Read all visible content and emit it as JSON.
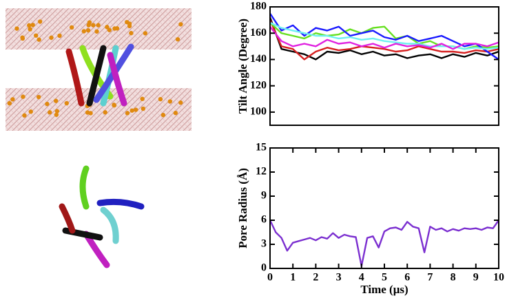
{
  "chart_data": [
    {
      "type": "line",
      "y_label": "Tilt Angle (Degree)",
      "x": [
        0,
        0.5,
        1,
        1.5,
        2,
        2.5,
        3,
        3.5,
        4,
        4.5,
        5,
        5.5,
        6,
        6.5,
        7,
        7.5,
        8,
        8.5,
        9,
        9.5,
        10
      ],
      "xlim": [
        0,
        10
      ],
      "ylim": [
        90,
        180
      ],
      "yticks": [
        100,
        120,
        140,
        160,
        180
      ],
      "series": [
        {
          "color": "#000000",
          "values": [
            172,
            148,
            146,
            144,
            140,
            146,
            145,
            147,
            144,
            146,
            143,
            144,
            141,
            143,
            144,
            141,
            144,
            142,
            145,
            143,
            146
          ]
        },
        {
          "color": "#d62020",
          "values": [
            170,
            150,
            148,
            140,
            146,
            149,
            147,
            148,
            150,
            149,
            148,
            146,
            147,
            150,
            148,
            146,
            146,
            145,
            147,
            146,
            148
          ]
        },
        {
          "color": "#66e020",
          "values": [
            168,
            160,
            158,
            156,
            160,
            158,
            159,
            163,
            160,
            164,
            165,
            156,
            158,
            152,
            154,
            150,
            150,
            148,
            150,
            149,
            150
          ]
        },
        {
          "color": "#1a1aff",
          "values": [
            175,
            162,
            166,
            158,
            164,
            162,
            165,
            158,
            160,
            162,
            157,
            155,
            158,
            154,
            156,
            158,
            154,
            150,
            152,
            146,
            140
          ]
        },
        {
          "color": "#6ff0f0",
          "values": [
            168,
            164,
            162,
            160,
            158,
            158,
            156,
            157,
            155,
            156,
            154,
            153,
            152,
            152,
            150,
            150,
            150,
            148,
            149,
            148,
            149
          ]
        },
        {
          "color": "#e020e0",
          "values": [
            165,
            154,
            150,
            152,
            150,
            155,
            152,
            153,
            150,
            152,
            149,
            152,
            150,
            151,
            149,
            152,
            148,
            152,
            152,
            150,
            153
          ]
        }
      ]
    },
    {
      "type": "line",
      "y_label": "Pore Radius (Å)",
      "x_label": "Time (μs)",
      "x": [
        0,
        0.25,
        0.5,
        0.75,
        1,
        1.25,
        1.5,
        1.75,
        2,
        2.25,
        2.5,
        2.75,
        3,
        3.25,
        3.5,
        3.75,
        4,
        4.25,
        4.5,
        4.75,
        5,
        5.25,
        5.5,
        5.75,
        6,
        6.25,
        6.5,
        6.75,
        7,
        7.25,
        7.5,
        7.75,
        8,
        8.25,
        8.5,
        8.75,
        9,
        9.25,
        9.5,
        9.75,
        10
      ],
      "xlim": [
        0,
        10
      ],
      "xticks": [
        0,
        1,
        2,
        3,
        4,
        5,
        6,
        7,
        8,
        9,
        10
      ],
      "ylim": [
        0,
        15
      ],
      "yticks": [
        0,
        3,
        6,
        9,
        12,
        15
      ],
      "series": [
        {
          "color": "#7b2fd0",
          "values": [
            6,
            4.5,
            3.8,
            2.2,
            3.2,
            3.4,
            3.6,
            3.8,
            3.5,
            3.9,
            3.7,
            4.4,
            3.8,
            4.2,
            4.0,
            3.9,
            0.3,
            3.8,
            4.0,
            2.6,
            4.6,
            5.0,
            5.1,
            4.8,
            5.8,
            5.2,
            5.0,
            2.0,
            5.2,
            4.8,
            5.0,
            4.6,
            4.9,
            4.7,
            5.0,
            4.9,
            5.0,
            4.8,
            5.1,
            5.0,
            6.0
          ]
        }
      ]
    }
  ]
}
